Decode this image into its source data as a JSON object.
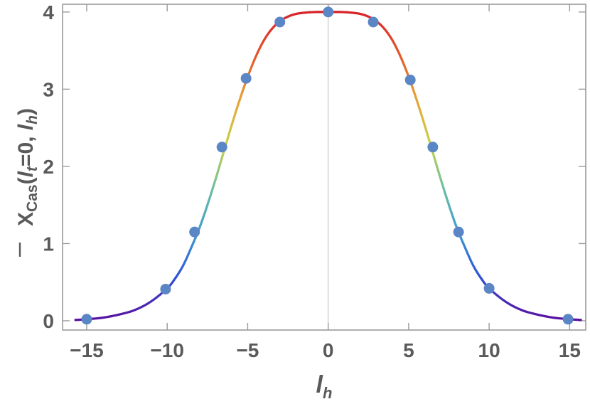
{
  "chart_data": {
    "type": "line",
    "xlabel": {
      "main": "l",
      "sub": "h"
    },
    "ylabel": {
      "bar": "X",
      "sub": "Cas",
      "open": "(",
      "l1": "l",
      "l1sub": "t",
      "eq": "=0, ",
      "l2": "l",
      "l2sub": "h",
      "close": ")"
    },
    "xlim": [
      -16.5,
      16
    ],
    "ylim": [
      -0.12,
      4.1
    ],
    "xticks": [
      -15,
      -10,
      -5,
      0,
      5,
      10,
      15
    ],
    "xtick_labels": [
      "−15",
      "−10",
      "−5",
      "0",
      "5",
      "10",
      "15"
    ],
    "yticks": [
      0,
      1,
      2,
      3,
      4
    ],
    "ytick_labels": [
      "0",
      "1",
      "2",
      "3",
      "4"
    ],
    "grid": false,
    "curve": {
      "description_type": "smooth line colored by value (rainbow: purple at 0, red at 4)",
      "x": [
        -15.7,
        -15,
        -14,
        -13,
        -12,
        -11,
        -10,
        -9.5,
        -9,
        -8.5,
        -8,
        -7.5,
        -7,
        -6.5,
        -6,
        -5.5,
        -5,
        -4.5,
        -4,
        -3.5,
        -3,
        -2.5,
        -2,
        -1.5,
        -1,
        -0.5,
        0,
        0.5,
        1,
        1.5,
        2,
        2.5,
        3,
        3.5,
        4,
        4.5,
        5,
        5.5,
        6,
        6.5,
        7,
        7.5,
        8,
        8.5,
        9,
        9.5,
        10,
        11,
        12,
        13,
        14,
        15,
        15.7
      ],
      "y": [
        0.01,
        0.02,
        0.04,
        0.08,
        0.14,
        0.25,
        0.42,
        0.55,
        0.72,
        0.95,
        1.2,
        1.5,
        1.83,
        2.18,
        2.53,
        2.86,
        3.16,
        3.42,
        3.63,
        3.78,
        3.88,
        3.94,
        3.975,
        3.99,
        3.998,
        4.0,
        4.0,
        4.0,
        3.998,
        3.99,
        3.975,
        3.94,
        3.88,
        3.78,
        3.63,
        3.42,
        3.16,
        2.86,
        2.53,
        2.18,
        1.83,
        1.5,
        1.2,
        0.95,
        0.72,
        0.55,
        0.42,
        0.25,
        0.14,
        0.08,
        0.04,
        0.02,
        0.01
      ]
    },
    "points": {
      "color": "#5b86c6",
      "x": [
        -15,
        -10.1,
        -8.3,
        -6.6,
        -5.1,
        -3,
        0,
        2.8,
        5.1,
        6.5,
        8.1,
        10,
        14.9
      ],
      "y": [
        0.02,
        0.41,
        1.15,
        2.25,
        3.14,
        3.87,
        4.0,
        3.87,
        3.12,
        2.25,
        1.15,
        0.42,
        0.02
      ]
    },
    "colors": {
      "frame": "#9a9a9a",
      "zero_line": "#bbbbbb",
      "text": "#5a5a5a",
      "gradient": [
        "#5a0f9e",
        "#2f52d8",
        "#3f9bd0",
        "#6cc0a0",
        "#c8d24a",
        "#e6a43a",
        "#e35a2b",
        "#d8232a"
      ]
    }
  }
}
